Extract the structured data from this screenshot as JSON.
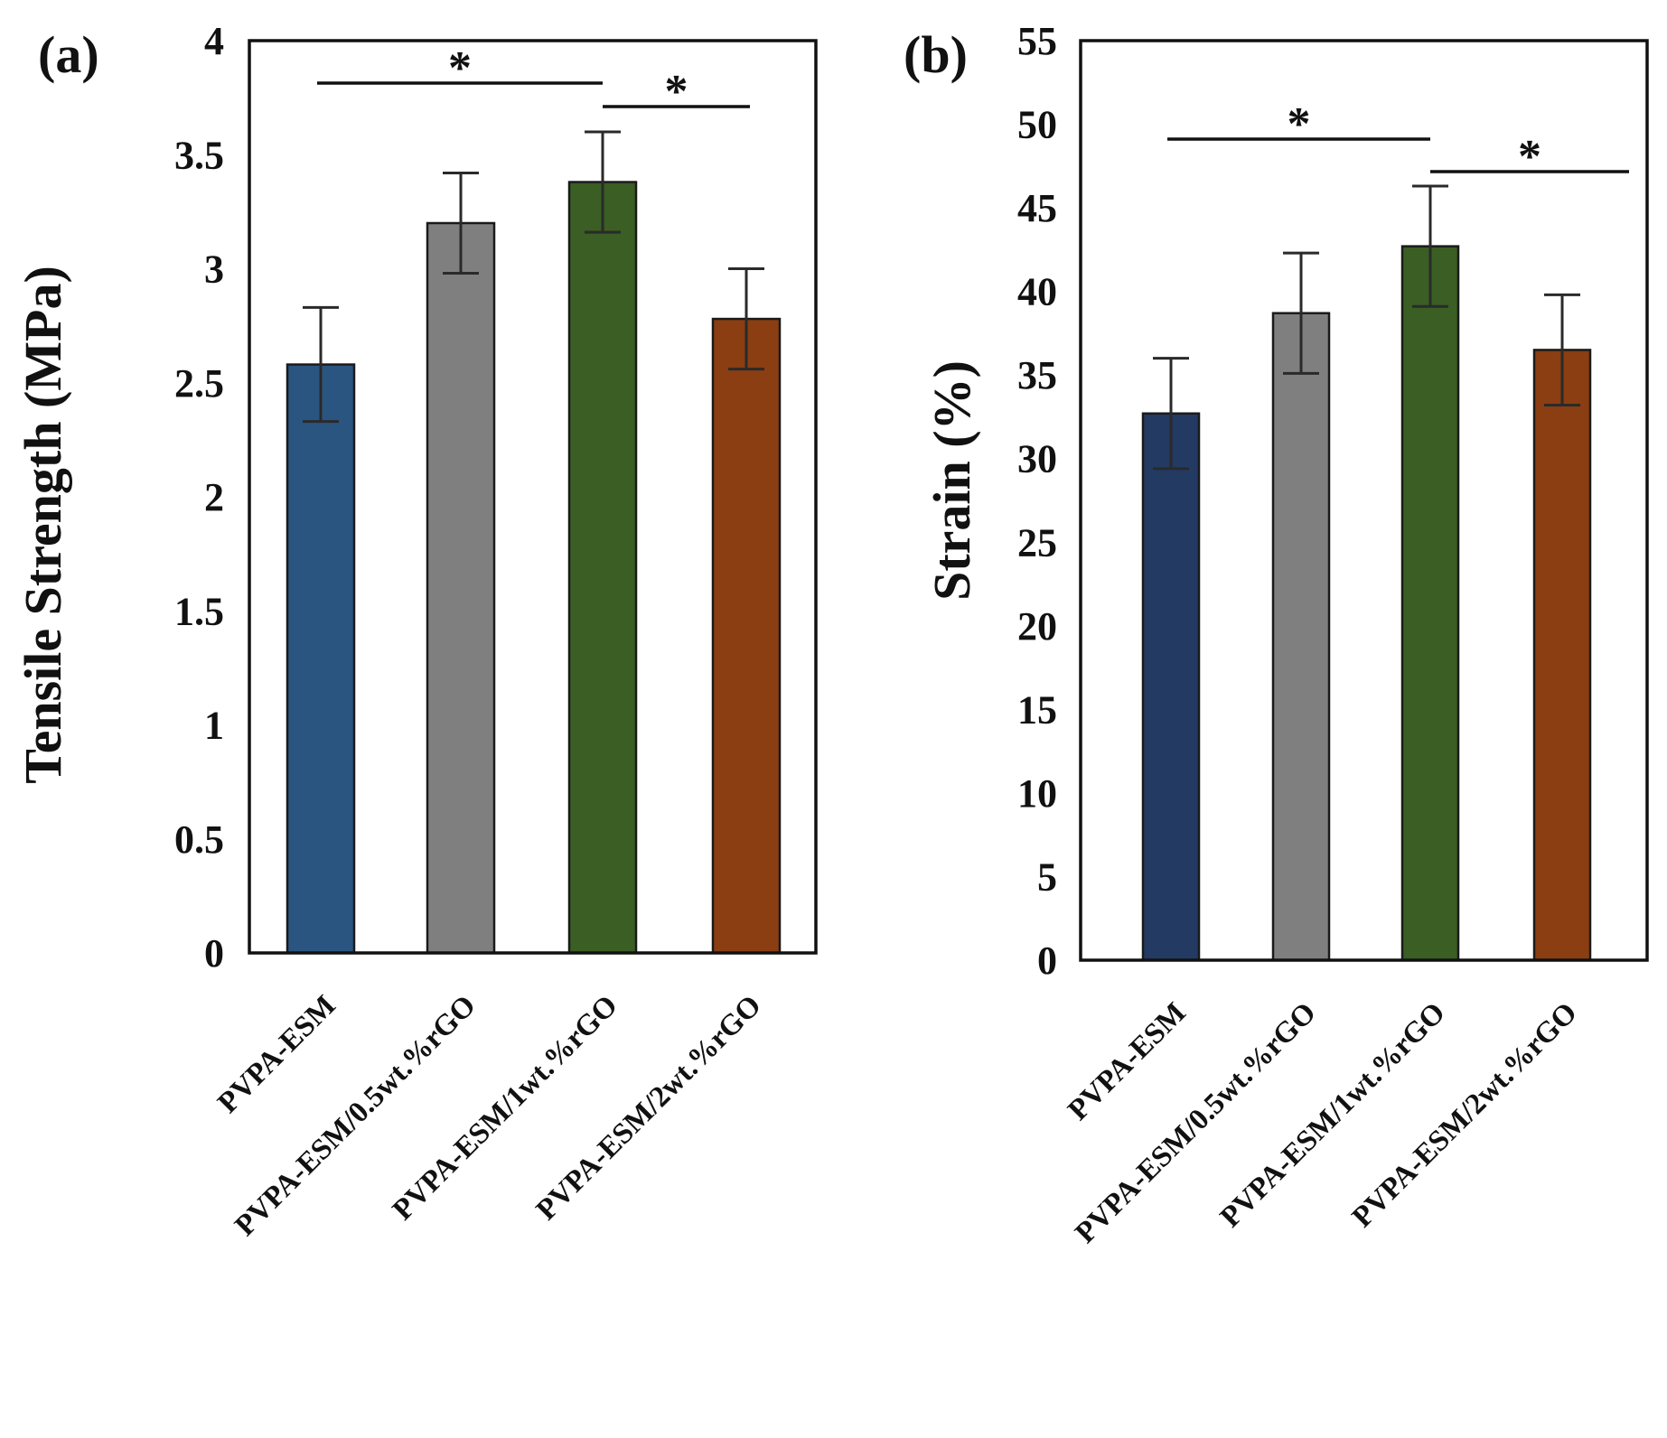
{
  "colors": {
    "bar_fills": [
      "#2a5580",
      "#7f7f7f",
      "#3a5e24",
      "#8a3e12"
    ],
    "bar_fills_b": [
      "#233a63",
      "#7f7f7f",
      "#3a5e24",
      "#8a3e12"
    ]
  },
  "chart_data": [
    {
      "panel_label": "(a)",
      "type": "bar",
      "ylabel": "Tensile Strength (MPa)",
      "xlabel": "",
      "ylim": [
        0,
        4
      ],
      "yticks": [
        0,
        0.5,
        1,
        1.5,
        2,
        2.5,
        3,
        3.5,
        4
      ],
      "ytick_labels": [
        "0",
        "0.5",
        "1",
        "1.5",
        "2",
        "2.5",
        "3",
        "3.5",
        "4"
      ],
      "categories": [
        "PVPA-ESM",
        "PVPA-ESM/0.5wt.%rGO",
        "PVPA-ESM/1wt.%rGO",
        "PVPA-ESM/2wt.%rGO"
      ],
      "values": [
        2.58,
        3.2,
        3.38,
        2.78
      ],
      "errors": [
        0.25,
        0.22,
        0.22,
        0.22
      ],
      "significance": [
        {
          "from": 0,
          "to": 2,
          "label": "*"
        },
        {
          "from": 2,
          "to": 3,
          "label": "*"
        }
      ]
    },
    {
      "panel_label": "(b)",
      "type": "bar",
      "ylabel": "Strain (%)",
      "xlabel": "",
      "ylim": [
        0,
        55
      ],
      "yticks": [
        0,
        5,
        10,
        15,
        20,
        25,
        30,
        35,
        40,
        45,
        50,
        55
      ],
      "ytick_labels": [
        "0",
        "5",
        "10",
        "15",
        "20",
        "25",
        "30",
        "35",
        "40",
        "45",
        "50",
        "55"
      ],
      "categories": [
        "PVPA-ESM",
        "PVPA-ESM/0.5wt.%rGO",
        "PVPA-ESM/1wt.%rGO",
        "PVPA-ESM/2wt.%rGO"
      ],
      "values": [
        32.7,
        38.7,
        42.7,
        36.5
      ],
      "errors": [
        3.3,
        3.6,
        3.6,
        3.3
      ],
      "significance": [
        {
          "from": 0,
          "to": 2,
          "label": "*"
        },
        {
          "from": 2,
          "to": 3,
          "label": "*"
        }
      ]
    }
  ]
}
